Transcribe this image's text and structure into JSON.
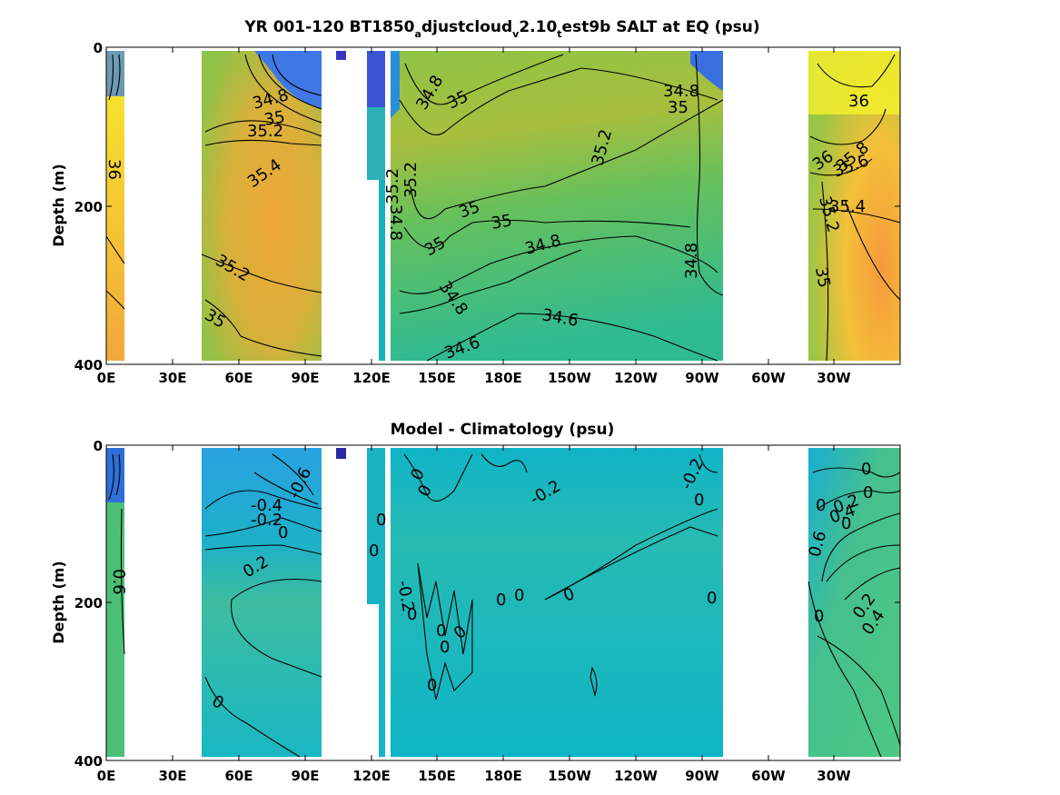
{
  "chart_data": [
    {
      "type": "heatmap",
      "title_parts": [
        "YR 001-120 BT1850",
        "a",
        "djustcloud",
        "v",
        "2.10",
        "t",
        "est9b SALT at EQ (psu)"
      ],
      "ylabel": "Depth (m)",
      "xticks": [
        "0E",
        "30E",
        "60E",
        "90E",
        "120E",
        "150E",
        "180E",
        "150W",
        "120W",
        "90W",
        "60W",
        "30W"
      ],
      "yticks": [
        "0",
        "200",
        "400"
      ],
      "ylim": [
        0,
        400
      ],
      "contour_labels": [
        {
          "text": "36"
        },
        {
          "text": "34.8"
        },
        {
          "text": "35"
        },
        {
          "text": "35.2"
        },
        {
          "text": "35.4"
        },
        {
          "text": "35.2"
        },
        {
          "text": "35"
        },
        {
          "text": "34.8"
        },
        {
          "text": "35"
        },
        {
          "text": "35.2"
        },
        {
          "text": "35.2"
        },
        {
          "text": "35"
        },
        {
          "text": "35"
        },
        {
          "text": "34.8"
        },
        {
          "text": "34.8"
        },
        {
          "text": "34.6"
        },
        {
          "text": "34.6"
        },
        {
          "text": "35.2"
        },
        {
          "text": "34.8"
        },
        {
          "text": "35"
        },
        {
          "text": "34.8"
        },
        {
          "text": "35"
        },
        {
          "text": "34.8"
        },
        {
          "text": "36"
        },
        {
          "text": "36"
        },
        {
          "text": "35.8"
        },
        {
          "text": "35.6"
        },
        {
          "text": "35.4"
        },
        {
          "text": "35.2"
        },
        {
          "text": "35"
        }
      ]
    },
    {
      "type": "heatmap",
      "title": "Model - Climatology (psu)",
      "ylabel": "Depth (m)",
      "xticks": [
        "0E",
        "30E",
        "60E",
        "90E",
        "120E",
        "150E",
        "180E",
        "150W",
        "120W",
        "90W",
        "60W",
        "30W"
      ],
      "yticks": [
        "0",
        "200",
        "400"
      ],
      "ylim": [
        0,
        400
      ],
      "contour_labels": [
        {
          "text": "0.6"
        },
        {
          "text": "-0.6"
        },
        {
          "text": "-0.4"
        },
        {
          "text": "-0.2"
        },
        {
          "text": "0"
        },
        {
          "text": "0.2"
        },
        {
          "text": "0"
        },
        {
          "text": "0"
        },
        {
          "text": "0"
        },
        {
          "text": "-0.2"
        },
        {
          "text": "0"
        },
        {
          "text": "0"
        },
        {
          "text": "0"
        },
        {
          "text": "0"
        },
        {
          "text": "0"
        },
        {
          "text": "0"
        },
        {
          "text": "0"
        },
        {
          "text": "-0.2"
        },
        {
          "text": "0"
        },
        {
          "text": "0"
        },
        {
          "text": "0"
        },
        {
          "text": "0"
        },
        {
          "text": "-0.2"
        },
        {
          "text": "0"
        },
        {
          "text": "0"
        },
        {
          "text": "0"
        },
        {
          "text": "0.2"
        },
        {
          "text": "0.4"
        },
        {
          "text": "0.6"
        },
        {
          "text": "0"
        },
        {
          "text": "0.2"
        },
        {
          "text": "0.4"
        },
        {
          "text": "0"
        },
        {
          "text": "0"
        }
      ]
    }
  ]
}
